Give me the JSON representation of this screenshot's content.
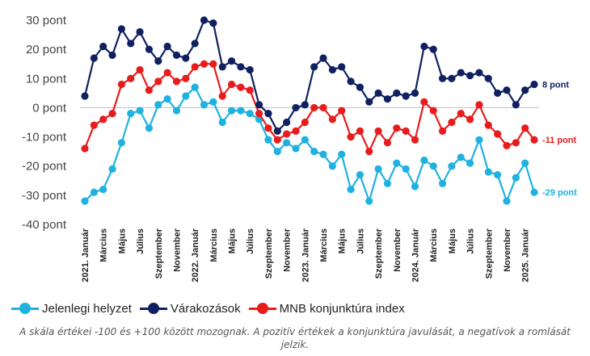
{
  "chart_data": {
    "type": "line",
    "ylim": [
      -40,
      30
    ],
    "ytick_labels": [
      "30 pont",
      "20 pont",
      "10 pont",
      "0 pont",
      "-10 pont",
      "-20 pont",
      "-30 pont",
      "-40 pont"
    ],
    "ytick_values": [
      30,
      20,
      10,
      0,
      -10,
      -20,
      -30,
      -40
    ],
    "x_labels": [
      "2021. Január",
      "Március",
      "Május",
      "Július",
      "Szeptember",
      "November",
      "2022. Január",
      "Március",
      "Május",
      "Július",
      "Szeptember",
      "November",
      "2023. Január",
      "Március",
      "Május",
      "Július",
      "Szeptember",
      "November",
      "2024. Január",
      "Március",
      "Május",
      "Július",
      "Szeptember",
      "November",
      "2025. Január"
    ],
    "x_label_indices": [
      0,
      2,
      4,
      6,
      8,
      10,
      12,
      14,
      16,
      18,
      20,
      22,
      24,
      26,
      28,
      30,
      32,
      34,
      36,
      38,
      40,
      42,
      44,
      46,
      48
    ],
    "grid": false,
    "legend_position": "bottom",
    "series": [
      {
        "name": "Jelenlegi helyzet",
        "color": "#1fb2e0",
        "end_label": "-29 pont",
        "values": [
          -32,
          -29,
          -28,
          -21,
          -12,
          -2,
          -1,
          -7,
          1,
          3,
          -1,
          4,
          7,
          1,
          2,
          -5,
          -1,
          -1,
          -2,
          -4,
          -11,
          -15,
          -12,
          -14,
          -11,
          -15,
          -16,
          -20,
          -16,
          -28,
          -23,
          -32,
          -21,
          -26,
          -19,
          -21,
          -27,
          -18,
          -20,
          -26,
          -20,
          -17,
          -19,
          -11,
          -22,
          -23,
          -32,
          -24,
          -19,
          -29
        ]
      },
      {
        "name": "Várakozások",
        "color": "#0f2160",
        "end_label": "8 pont",
        "values": [
          4,
          17,
          21,
          18,
          27,
          22,
          26,
          20,
          16,
          21,
          18,
          17,
          22,
          30,
          29,
          14,
          16,
          14,
          13,
          1,
          -2,
          -8,
          -5,
          0,
          1,
          14,
          17,
          13,
          14,
          9,
          7,
          2,
          5,
          3,
          5,
          4,
          5,
          21,
          20,
          10,
          10,
          12,
          11,
          12,
          10,
          5,
          6,
          1,
          6,
          8
        ]
      },
      {
        "name": "MNB konjunktúra index",
        "color": "#e81c1c",
        "end_label": "-11 pont",
        "values": [
          -14,
          -6,
          -4,
          -2,
          8,
          10,
          13,
          6,
          9,
          12,
          9,
          10,
          14,
          15,
          15,
          4,
          8,
          7,
          6,
          -2,
          -7,
          -11,
          -9,
          -8,
          -5,
          0,
          0,
          -4,
          -1,
          -10,
          -8,
          -15,
          -8,
          -12,
          -7,
          -8,
          -11,
          2,
          -1,
          -8,
          -5,
          -2,
          -4,
          1,
          -6,
          -9,
          -13,
          -12,
          -7,
          -11
        ]
      }
    ]
  },
  "note": "A skála értékei -100 és +100 között mozognak. A pozitív értékek a konjunktúra javulását, a negatívok a romlását jelzik."
}
